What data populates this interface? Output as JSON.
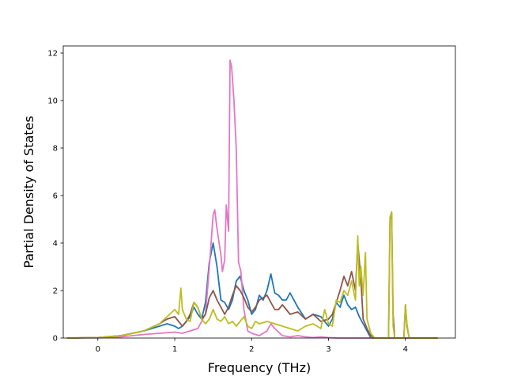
{
  "chart_data": {
    "type": "line",
    "title": "",
    "xlabel": "Frequency (THz)",
    "ylabel": "Partial Density of States",
    "xlim": [
      -0.45,
      4.65
    ],
    "ylim": [
      0,
      12.3
    ],
    "x_ticks": [
      0,
      1,
      2,
      3,
      4
    ],
    "y_ticks": [
      0,
      2,
      4,
      6,
      8,
      10,
      12
    ],
    "grid": false,
    "legend": "none",
    "series": [
      {
        "color": "#1f77b4",
        "x": [
          -0.4,
          0.0,
          0.3,
          0.6,
          0.8,
          0.9,
          1.0,
          1.05,
          1.1,
          1.2,
          1.25,
          1.3,
          1.35,
          1.4,
          1.45,
          1.5,
          1.55,
          1.6,
          1.65,
          1.7,
          1.75,
          1.8,
          1.85,
          1.9,
          1.95,
          2.0,
          2.05,
          2.1,
          2.15,
          2.2,
          2.25,
          2.3,
          2.35,
          2.4,
          2.45,
          2.5,
          2.6,
          2.7,
          2.8,
          2.9,
          2.95,
          3.0,
          3.05,
          3.1,
          3.15,
          3.2,
          3.25,
          3.3,
          3.35,
          3.4,
          3.45,
          3.5,
          3.55,
          4.42
        ],
        "y": [
          0,
          0.02,
          0.1,
          0.3,
          0.5,
          0.6,
          0.5,
          0.4,
          0.5,
          0.9,
          1.3,
          1.0,
          0.8,
          1.5,
          3.2,
          4.0,
          3.0,
          1.6,
          1.5,
          1.2,
          1.6,
          2.4,
          2.6,
          2.0,
          1.6,
          1.0,
          1.2,
          1.8,
          1.6,
          2.0,
          2.7,
          1.9,
          1.8,
          1.6,
          1.6,
          1.9,
          1.3,
          0.8,
          1.0,
          0.9,
          0.7,
          0.5,
          0.8,
          1.5,
          1.3,
          1.8,
          1.4,
          1.2,
          1.3,
          0.9,
          0.6,
          0.3,
          0.0,
          0
        ]
      },
      {
        "color": "#e377c2",
        "x": [
          -0.4,
          0.0,
          0.3,
          0.6,
          0.8,
          1.0,
          1.1,
          1.2,
          1.3,
          1.4,
          1.45,
          1.5,
          1.52,
          1.55,
          1.6,
          1.62,
          1.65,
          1.67,
          1.7,
          1.72,
          1.74,
          1.77,
          1.8,
          1.83,
          1.86,
          1.9,
          1.95,
          2.0,
          2.1,
          2.2,
          2.25,
          2.3,
          2.4,
          2.5,
          2.6,
          2.7,
          2.8,
          2.9,
          3.0,
          3.1,
          3.3,
          3.5,
          3.6,
          4.42
        ],
        "y": [
          0,
          0.01,
          0.05,
          0.15,
          0.2,
          0.25,
          0.2,
          0.3,
          0.4,
          1.0,
          3.0,
          5.2,
          5.4,
          4.6,
          3.5,
          2.8,
          3.3,
          5.6,
          4.5,
          11.7,
          11.4,
          10.0,
          8.0,
          3.2,
          2.8,
          1.2,
          0.3,
          0.2,
          0.1,
          0.3,
          0.6,
          0.4,
          0.1,
          0.05,
          0.1,
          0.05,
          0.02,
          0.05,
          0.02,
          0.0,
          0.0,
          0.0,
          0,
          0
        ]
      },
      {
        "color": "#8c564b",
        "x": [
          -0.4,
          0.0,
          0.3,
          0.6,
          0.8,
          0.9,
          1.0,
          1.05,
          1.1,
          1.15,
          1.2,
          1.25,
          1.3,
          1.35,
          1.4,
          1.45,
          1.5,
          1.55,
          1.6,
          1.65,
          1.7,
          1.75,
          1.8,
          1.85,
          1.9,
          1.95,
          2.0,
          2.05,
          2.1,
          2.15,
          2.2,
          2.25,
          2.3,
          2.35,
          2.4,
          2.5,
          2.6,
          2.7,
          2.8,
          2.9,
          3.0,
          3.05,
          3.1,
          3.15,
          3.2,
          3.25,
          3.3,
          3.35,
          3.38,
          3.42,
          3.45,
          3.5,
          3.55,
          3.6,
          3.7,
          3.78,
          3.8,
          3.82,
          3.84,
          3.86,
          3.9,
          3.95,
          3.98,
          4.0,
          4.02,
          4.05,
          4.1,
          4.42
        ],
        "y": [
          0,
          0.02,
          0.1,
          0.3,
          0.6,
          0.8,
          0.9,
          0.7,
          0.5,
          0.7,
          1.0,
          1.5,
          1.3,
          0.8,
          1.0,
          1.7,
          2.0,
          1.6,
          1.3,
          1.0,
          1.3,
          1.8,
          2.2,
          2.0,
          1.7,
          1.3,
          1.1,
          1.3,
          1.6,
          1.7,
          1.8,
          1.5,
          1.2,
          1.2,
          1.4,
          1.0,
          1.1,
          0.8,
          1.0,
          0.7,
          0.8,
          1.0,
          1.5,
          2.0,
          2.6,
          2.2,
          2.8,
          2.0,
          4.0,
          2.5,
          0.8,
          0.4,
          0.1,
          0.0,
          0.0,
          0.0,
          5.0,
          5.3,
          1.0,
          0.0,
          0.0,
          0.0,
          0.0,
          1.4,
          0.5,
          0.0,
          0.0,
          0
        ]
      },
      {
        "color": "#bcbd22",
        "x": [
          -0.4,
          0.0,
          0.3,
          0.6,
          0.8,
          0.9,
          1.0,
          1.05,
          1.08,
          1.1,
          1.15,
          1.2,
          1.25,
          1.3,
          1.35,
          1.4,
          1.45,
          1.5,
          1.55,
          1.6,
          1.65,
          1.7,
          1.75,
          1.8,
          1.85,
          1.9,
          1.95,
          2.0,
          2.05,
          2.1,
          2.2,
          2.3,
          2.4,
          2.5,
          2.6,
          2.7,
          2.8,
          2.9,
          2.95,
          3.0,
          3.05,
          3.1,
          3.15,
          3.2,
          3.25,
          3.3,
          3.35,
          3.38,
          3.4,
          3.42,
          3.45,
          3.48,
          3.5,
          3.55,
          3.6,
          3.7,
          3.78,
          3.8,
          3.82,
          3.84,
          3.86,
          3.9,
          3.95,
          3.98,
          4.0,
          4.02,
          4.05,
          4.1,
          4.42
        ],
        "y": [
          0,
          0.02,
          0.1,
          0.3,
          0.6,
          0.9,
          1.2,
          1.0,
          2.1,
          1.2,
          0.8,
          0.7,
          1.5,
          1.3,
          0.8,
          0.6,
          0.8,
          1.2,
          0.8,
          0.7,
          0.9,
          0.6,
          0.7,
          0.5,
          0.7,
          0.9,
          0.5,
          0.4,
          0.7,
          0.6,
          0.7,
          0.6,
          0.5,
          0.4,
          0.3,
          0.5,
          0.6,
          0.4,
          1.2,
          0.6,
          0.5,
          1.6,
          1.5,
          2.0,
          1.8,
          2.4,
          1.6,
          4.3,
          2.2,
          3.0,
          1.8,
          3.6,
          0.8,
          0.2,
          0.0,
          0.0,
          0.0,
          5.1,
          5.3,
          0.5,
          0.0,
          0.0,
          0.0,
          0.0,
          1.4,
          0.6,
          0.0,
          0.0,
          0
        ]
      }
    ]
  }
}
